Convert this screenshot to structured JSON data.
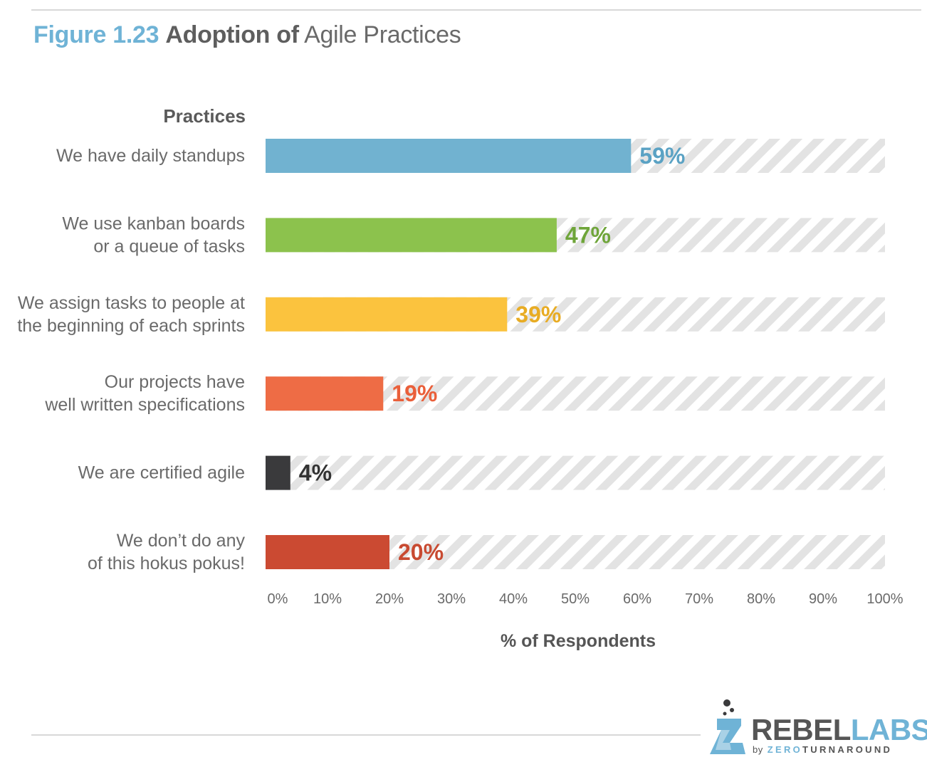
{
  "title": {
    "figure": "Figure 1.23",
    "bold": "Adoption of",
    "light": "Agile Practices"
  },
  "chart_data": {
    "type": "bar",
    "orientation": "horizontal",
    "categories_heading": "Practices",
    "categories": [
      [
        "We have daily standups"
      ],
      [
        "We use kanban boards",
        "or a queue of tasks"
      ],
      [
        "We assign tasks to people at",
        "the beginning of each sprints"
      ],
      [
        "Our projects have",
        "well written specifications"
      ],
      [
        "We are certified agile"
      ],
      [
        "We don’t do any",
        "of this hokus pokus!"
      ]
    ],
    "values": [
      59,
      47,
      39,
      19,
      4,
      20
    ],
    "value_labels": [
      "59%",
      "47%",
      "39%",
      "19%",
      "4%",
      "20%"
    ],
    "colors": [
      "#71b2d0",
      "#8cc24d",
      "#fbc33e",
      "#ee6c45",
      "#3a3a3c",
      "#cb4a32"
    ],
    "label_colors": [
      "#5aa2c4",
      "#6fa53a",
      "#e8ac24",
      "#ea5f3a",
      "#333333",
      "#c84a31"
    ],
    "xlim": [
      0,
      100
    ],
    "xticks": [
      "0%",
      "10%",
      "20%",
      "30%",
      "40%",
      "50%",
      "60%",
      "70%",
      "80%",
      "90%",
      "100%"
    ],
    "xlabel": "% of Respondents",
    "background_pattern": "diagonal-stripes"
  },
  "logo": {
    "main_dark": "REBEL",
    "main_light": "LABS",
    "by": "by",
    "sub_light": "ZERO",
    "sub_dark": "TURNAROUND"
  }
}
